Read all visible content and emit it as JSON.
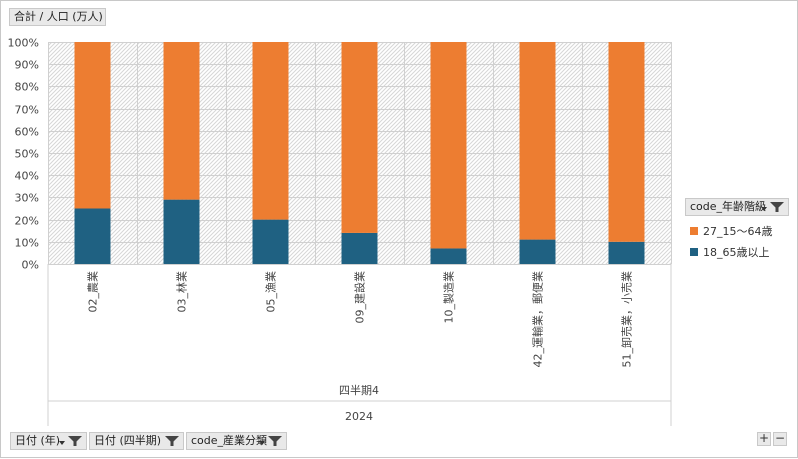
{
  "value_button": {
    "label": "合計 / 人口 (万人)"
  },
  "legend": {
    "title": "code_年齢階級",
    "items": [
      {
        "label": "27_15～64歳",
        "color": "#ED7D31"
      },
      {
        "label": "18_65歳以上",
        "color": "#1F6182"
      }
    ]
  },
  "bottom_buttons": [
    {
      "label": "日付 (年)"
    },
    {
      "label": "日付 (四半期)"
    },
    {
      "label": "code_産業分類"
    }
  ],
  "zoom": {
    "plus": "+",
    "minus": "−"
  },
  "chart_data": {
    "type": "bar",
    "stacked": true,
    "percent": true,
    "categories": [
      "02_農業",
      "03_林業",
      "05_漁業",
      "09_建設業",
      "10_製造業",
      "42_運輸業，郵便業",
      "51_卸売業，小売業"
    ],
    "group_labels": {
      "quarter": "四半期4",
      "year": "2024"
    },
    "y_ticks": [
      "0%",
      "10%",
      "20%",
      "30%",
      "40%",
      "50%",
      "60%",
      "70%",
      "80%",
      "90%",
      "100%"
    ],
    "ylim": [
      0,
      1
    ],
    "grid": true,
    "legend_position": "right",
    "series": [
      {
        "name": "18_65歳以上",
        "color": "#1F6182",
        "values": [
          0.25,
          0.29,
          0.2,
          0.14,
          0.07,
          0.11,
          0.1
        ]
      },
      {
        "name": "27_15～64歳",
        "color": "#ED7D31",
        "values": [
          0.75,
          0.71,
          0.8,
          0.86,
          0.93,
          0.89,
          0.9
        ]
      }
    ]
  }
}
